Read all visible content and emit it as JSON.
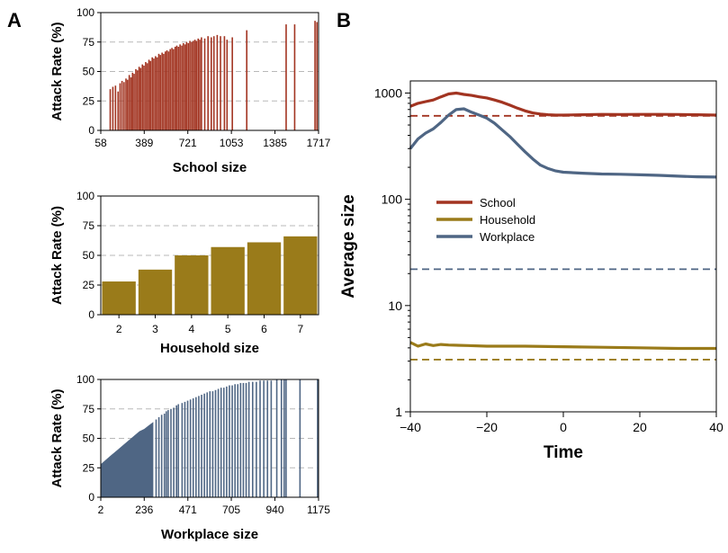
{
  "panels": {
    "a_label": "A",
    "b_label": "B"
  },
  "colors": {
    "school": "#a23421",
    "household": "#9a7b1a",
    "workplace": "#4f6684",
    "grid": "#b8b8b8"
  },
  "chart_data": [
    {
      "id": "school-attack",
      "type": "bar",
      "xlabel": "School size",
      "ylabel": "Attack Rate (%)",
      "xlim": [
        58,
        1717
      ],
      "ylim": [
        0,
        100
      ],
      "xticks": [
        58,
        389,
        721,
        1053,
        1385,
        1717
      ],
      "yticks": [
        0,
        25,
        50,
        75,
        100
      ],
      "grid": "horizontal dashed",
      "color": "school",
      "points": [
        [
          130,
          35
        ],
        [
          150,
          37
        ],
        [
          170,
          38
        ],
        [
          190,
          33
        ],
        [
          205,
          40
        ],
        [
          220,
          42
        ],
        [
          235,
          41
        ],
        [
          250,
          44
        ],
        [
          262,
          43
        ],
        [
          275,
          47
        ],
        [
          288,
          45
        ],
        [
          300,
          49
        ],
        [
          312,
          48
        ],
        [
          325,
          52
        ],
        [
          337,
          51
        ],
        [
          350,
          54
        ],
        [
          362,
          53
        ],
        [
          375,
          56
        ],
        [
          387,
          55
        ],
        [
          400,
          58
        ],
        [
          412,
          57
        ],
        [
          425,
          60
        ],
        [
          437,
          59
        ],
        [
          450,
          62
        ],
        [
          462,
          61
        ],
        [
          475,
          63
        ],
        [
          487,
          62
        ],
        [
          500,
          65
        ],
        [
          512,
          64
        ],
        [
          525,
          66
        ],
        [
          537,
          65
        ],
        [
          550,
          67
        ],
        [
          562,
          68
        ],
        [
          575,
          67
        ],
        [
          587,
          69
        ],
        [
          600,
          70
        ],
        [
          612,
          69
        ],
        [
          625,
          71
        ],
        [
          637,
          72
        ],
        [
          650,
          71
        ],
        [
          662,
          73
        ],
        [
          675,
          72
        ],
        [
          687,
          74
        ],
        [
          700,
          73
        ],
        [
          712,
          75
        ],
        [
          725,
          74
        ],
        [
          737,
          76
        ],
        [
          750,
          75
        ],
        [
          762,
          76
        ],
        [
          775,
          77
        ],
        [
          787,
          76
        ],
        [
          800,
          78
        ],
        [
          812,
          77
        ],
        [
          825,
          79
        ],
        [
          850,
          78
        ],
        [
          875,
          80
        ],
        [
          900,
          79
        ],
        [
          920,
          80
        ],
        [
          945,
          81
        ],
        [
          970,
          80
        ],
        [
          1000,
          80
        ],
        [
          1020,
          77
        ],
        [
          1060,
          79
        ],
        [
          1170,
          85
        ],
        [
          1470,
          90
        ],
        [
          1535,
          90
        ],
        [
          1690,
          93
        ],
        [
          1705,
          92
        ]
      ]
    },
    {
      "id": "household-attack",
      "type": "bar",
      "xlabel": "Household size",
      "ylabel": "Attack Rate (%)",
      "ylim": [
        0,
        100
      ],
      "yticks": [
        0,
        25,
        50,
        75,
        100
      ],
      "grid": "horizontal dashed",
      "color": "household",
      "categories": [
        "2",
        "3",
        "4",
        "5",
        "6",
        "7"
      ],
      "values": [
        28,
        38,
        50,
        57,
        61,
        66
      ]
    },
    {
      "id": "workplace-attack",
      "type": "bar",
      "xlabel": "Workplace size",
      "ylabel": "Attack Rate (%)",
      "xlim": [
        2,
        1175
      ],
      "ylim": [
        0,
        100
      ],
      "xticks": [
        2,
        236,
        471,
        705,
        940,
        1175
      ],
      "yticks": [
        0,
        25,
        50,
        75,
        100
      ],
      "grid": "horizontal dashed",
      "color": "workplace",
      "dense_curve": [
        [
          2,
          28
        ],
        [
          30,
          32
        ],
        [
          60,
          36
        ],
        [
          90,
          40
        ],
        [
          120,
          44
        ],
        [
          150,
          48
        ],
        [
          180,
          52
        ],
        [
          210,
          56
        ],
        [
          236,
          58
        ],
        [
          260,
          61
        ],
        [
          285,
          64
        ]
      ],
      "points": [
        [
          300,
          66
        ],
        [
          315,
          68
        ],
        [
          330,
          70
        ],
        [
          345,
          71
        ],
        [
          355,
          73
        ],
        [
          365,
          74
        ],
        [
          380,
          75
        ],
        [
          395,
          76
        ],
        [
          410,
          78
        ],
        [
          420,
          79
        ],
        [
          440,
          80
        ],
        [
          455,
          81
        ],
        [
          470,
          82
        ],
        [
          485,
          83
        ],
        [
          500,
          84
        ],
        [
          515,
          85
        ],
        [
          530,
          86
        ],
        [
          545,
          87
        ],
        [
          560,
          88
        ],
        [
          575,
          89
        ],
        [
          590,
          90
        ],
        [
          605,
          90
        ],
        [
          620,
          91
        ],
        [
          635,
          92
        ],
        [
          650,
          93
        ],
        [
          665,
          93
        ],
        [
          680,
          94
        ],
        [
          695,
          95
        ],
        [
          710,
          95
        ],
        [
          725,
          96
        ],
        [
          740,
          96
        ],
        [
          755,
          97
        ],
        [
          770,
          97
        ],
        [
          785,
          97
        ],
        [
          800,
          98
        ],
        [
          820,
          98
        ],
        [
          840,
          98
        ],
        [
          860,
          99
        ],
        [
          880,
          99
        ],
        [
          900,
          99
        ],
        [
          920,
          99
        ],
        [
          950,
          100
        ],
        [
          975,
          100
        ],
        [
          990,
          100
        ],
        [
          1000,
          100
        ],
        [
          1075,
          100
        ],
        [
          1170,
          100
        ]
      ]
    },
    {
      "id": "average-size",
      "type": "line",
      "xlabel": "Time",
      "ylabel": "Average size",
      "xlim": [
        -40,
        40
      ],
      "ylim": [
        1,
        1300
      ],
      "yscale": "log",
      "xticks": [
        -40,
        -20,
        0,
        20,
        40
      ],
      "xtick_labels": [
        "−40",
        "−20",
        "0",
        "20",
        "40"
      ],
      "yticks": [
        1,
        10,
        100,
        1000
      ],
      "legend_position": "center-left",
      "series": [
        {
          "name": "School",
          "color": "school",
          "x": [
            -40,
            -38,
            -36,
            -34,
            -32,
            -30,
            -28,
            -26,
            -24,
            -22,
            -20,
            -18,
            -16,
            -14,
            -12,
            -10,
            -8,
            -6,
            -4,
            -2,
            0,
            5,
            10,
            15,
            20,
            25,
            30,
            35,
            40
          ],
          "y": [
            750,
            800,
            830,
            860,
            920,
            980,
            1000,
            970,
            950,
            920,
            900,
            860,
            820,
            770,
            720,
            680,
            650,
            635,
            625,
            620,
            620,
            625,
            630,
            628,
            630,
            630,
            628,
            625,
            620
          ],
          "reference": 610
        },
        {
          "name": "Household",
          "color": "household",
          "x": [
            -40,
            -38,
            -36,
            -34,
            -32,
            -30,
            -25,
            -20,
            -10,
            0,
            10,
            20,
            30,
            40
          ],
          "y": [
            4.5,
            4.15,
            4.35,
            4.2,
            4.3,
            4.25,
            4.2,
            4.15,
            4.15,
            4.1,
            4.05,
            4.0,
            3.95,
            3.95
          ],
          "reference": 3.1
        },
        {
          "name": "Workplace",
          "color": "workplace",
          "x": [
            -40,
            -38,
            -36,
            -34,
            -32,
            -30,
            -28,
            -26,
            -24,
            -22,
            -20,
            -18,
            -16,
            -14,
            -12,
            -10,
            -8,
            -6,
            -4,
            -2,
            0,
            5,
            10,
            15,
            20,
            25,
            30,
            35,
            40
          ],
          "y": [
            300,
            370,
            420,
            460,
            530,
            620,
            700,
            710,
            660,
            620,
            580,
            520,
            450,
            390,
            330,
            280,
            240,
            210,
            195,
            185,
            180,
            176,
            173,
            172,
            170,
            168,
            165,
            163,
            162
          ],
          "reference": 22
        }
      ]
    }
  ]
}
